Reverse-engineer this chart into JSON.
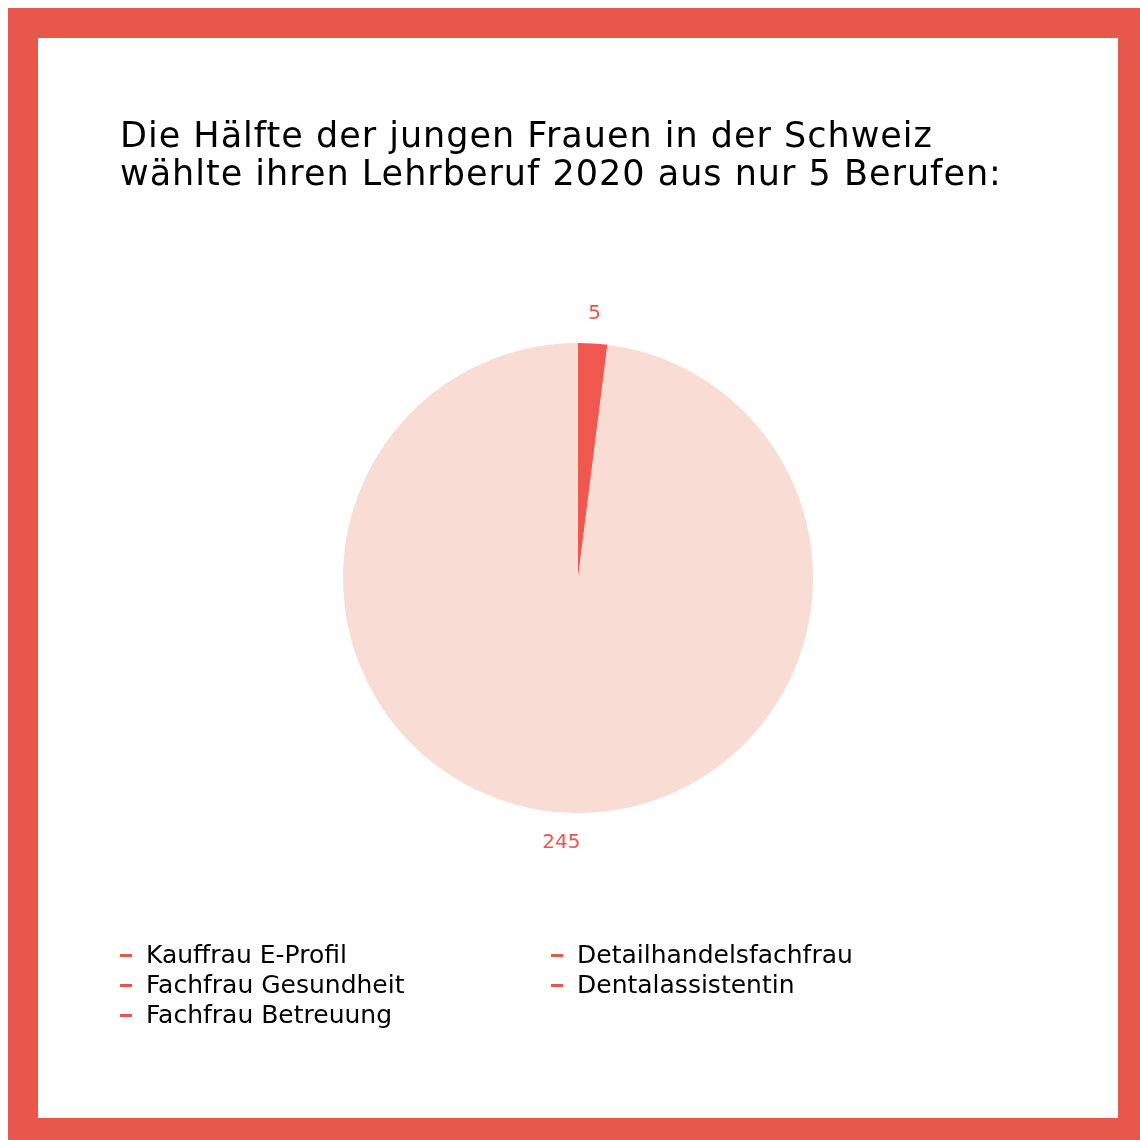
{
  "chart_data": {
    "type": "pie",
    "title": "Die Hälfte der jungen Frauen in der Schweiz wählte ihren Lehrberuf 2020 aus nur 5 Berufen:",
    "categories": [
      null,
      null
    ],
    "values": [
      5,
      245
    ],
    "colors": [
      "#f0584f",
      "#f9dcd3"
    ],
    "data_labels": true,
    "annotations": [
      "Kauffrau E-Profil",
      "Fachfrau Gesundheit",
      "Fachfrau Betreuung",
      "Detailhandelsfachfrau",
      "Dentalassistentin"
    ]
  }
}
